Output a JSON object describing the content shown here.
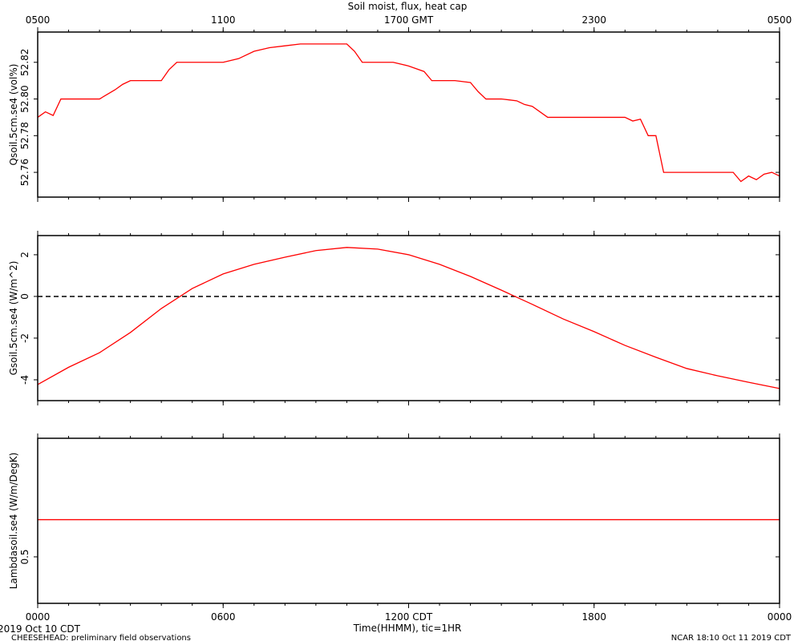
{
  "footer": {
    "date": "2019 Oct 10 CDT",
    "project": "CHEESEHEAD: preliminary field observations",
    "stamp": "NCAR 18:10 Oct 11 2019 CDT"
  },
  "chart_data": [
    {
      "type": "line",
      "title": "Soil moist, flux, heat cap",
      "ylabel": "Qsoil.5cm.se4 (vol%)",
      "color": "#ff0000",
      "x": [
        0,
        0.25,
        0.5,
        0.75,
        1,
        1.5,
        2,
        2.5,
        2.75,
        3,
        3.5,
        4,
        4.25,
        4.5,
        5,
        5.5,
        6,
        6.5,
        7,
        7.5,
        8,
        8.5,
        9,
        9.5,
        10,
        10.25,
        10.5,
        11,
        11.5,
        12,
        12.5,
        12.75,
        13,
        13.5,
        14,
        14.25,
        14.5,
        15,
        15.5,
        15.75,
        16,
        16.5,
        17,
        17.5,
        18,
        18.5,
        19,
        19.25,
        19.5,
        19.75,
        20,
        20.25,
        20.5,
        21,
        21.5,
        22,
        22.5,
        22.75,
        23,
        23.25,
        23.5,
        23.75,
        24
      ],
      "values": [
        52.79,
        52.793,
        52.791,
        52.8,
        52.8,
        52.8,
        52.8,
        52.805,
        52.808,
        52.81,
        52.81,
        52.81,
        52.816,
        52.82,
        52.82,
        52.82,
        52.82,
        52.822,
        52.826,
        52.828,
        52.829,
        52.83,
        52.83,
        52.83,
        52.83,
        52.826,
        52.82,
        52.82,
        52.82,
        52.818,
        52.815,
        52.81,
        52.81,
        52.81,
        52.809,
        52.804,
        52.8,
        52.8,
        52.799,
        52.797,
        52.796,
        52.79,
        52.79,
        52.79,
        52.79,
        52.79,
        52.79,
        52.788,
        52.789,
        52.78,
        52.78,
        52.76,
        52.76,
        52.76,
        52.76,
        52.76,
        52.76,
        52.755,
        52.758,
        52.756,
        52.759,
        52.76,
        52.758
      ],
      "xlim": [
        0,
        24
      ],
      "ylim": [
        52.7465,
        52.8365
      ],
      "yticks": [
        52.76,
        52.78,
        {
          "value": 52.8,
          "label": "52.80"
        },
        52.82
      ],
      "xticks": [
        0,
        6,
        12,
        18,
        24
      ],
      "x2ticks": [
        {
          "value": 0,
          "label": "0500"
        },
        {
          "value": 6,
          "label": "1100"
        },
        {
          "value": 12,
          "label": "1700 GMT"
        },
        {
          "value": 18,
          "label": "2300"
        },
        {
          "value": 24,
          "label": "0500"
        }
      ],
      "xminorticks": [
        0,
        1,
        2,
        3,
        4,
        5,
        6,
        7,
        8,
        9,
        10,
        11,
        12,
        13,
        14,
        15,
        16,
        17,
        18,
        19,
        20,
        21,
        22,
        23,
        24
      ]
    },
    {
      "type": "line",
      "ylabel": "Gsoil.5cm.se4 (W/m^2)",
      "color": "#ff0000",
      "x": [
        0,
        1,
        2,
        3,
        4,
        5,
        6,
        7,
        8,
        9,
        10,
        11,
        12,
        13,
        14,
        15,
        16,
        17,
        18,
        19,
        20,
        21,
        22,
        23,
        24
      ],
      "values": [
        -4.23,
        -3.4,
        -2.7,
        -1.73,
        -0.58,
        0.38,
        1.08,
        1.54,
        1.88,
        2.2,
        2.35,
        2.27,
        2.0,
        1.54,
        0.96,
        0.3,
        -0.38,
        -1.08,
        -1.69,
        -2.35,
        -2.92,
        -3.46,
        -3.81,
        -4.12,
        -4.42
      ],
      "xlim": [
        0,
        24
      ],
      "ylim": [
        -5,
        2.92
      ],
      "yticks": [
        -4,
        -2,
        0,
        2
      ],
      "hline": 0,
      "xticks": [
        0,
        6,
        12,
        18,
        24
      ],
      "xminorticks": [
        0,
        1,
        2,
        3,
        4,
        5,
        6,
        7,
        8,
        9,
        10,
        11,
        12,
        13,
        14,
        15,
        16,
        17,
        18,
        19,
        20,
        21,
        22,
        23,
        24
      ]
    },
    {
      "type": "line",
      "ylabel": "Lambdasoil.se4 (W/m/DegK)",
      "xlabel": "Time(HHMM), tic=1HR",
      "color": "#ff0000",
      "x": [
        0,
        24
      ],
      "values": [
        0.58,
        0.58
      ],
      "xlim": [
        0,
        24
      ],
      "ylim": [
        0.4,
        0.755
      ],
      "yticks": [
        0.5
      ],
      "xticks": [
        {
          "value": 0,
          "label": "0000"
        },
        {
          "value": 6,
          "label": "0600"
        },
        {
          "value": 12,
          "label": "1200 CDT"
        },
        {
          "value": 18,
          "label": "1800"
        },
        {
          "value": 24,
          "label": "0000"
        }
      ],
      "xminorticks": [
        0,
        1,
        2,
        3,
        4,
        5,
        6,
        7,
        8,
        9,
        10,
        11,
        12,
        13,
        14,
        15,
        16,
        17,
        18,
        19,
        20,
        21,
        22,
        23,
        24
      ]
    }
  ]
}
